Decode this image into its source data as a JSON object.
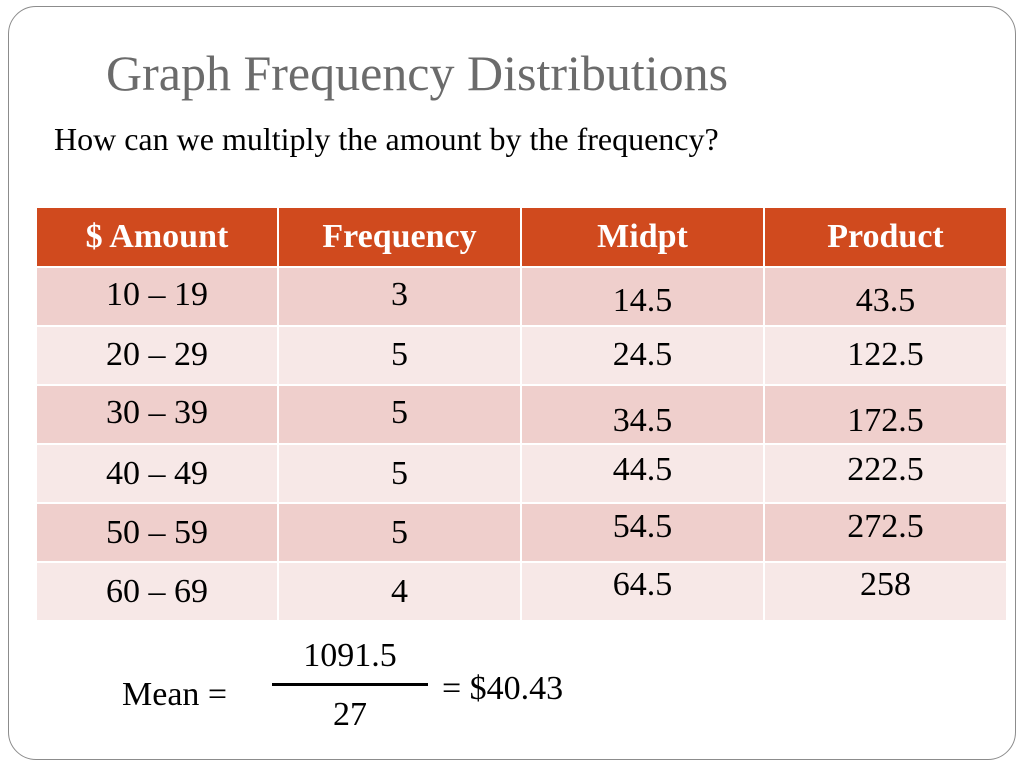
{
  "slide": {
    "title": "Graph Frequency Distributions",
    "subtitle": "How can we multiply the amount by the frequency?"
  },
  "table": {
    "headers": [
      "$ Amount",
      "Frequency",
      "Midpt",
      "Product"
    ],
    "header_color": "#d04a1e",
    "row_colors": [
      "#efcfcc",
      "#f7e8e7"
    ],
    "rows": [
      [
        "10 – 19",
        "3",
        "14.5",
        "43.5"
      ],
      [
        "20 – 29",
        "5",
        "24.5",
        "122.5"
      ],
      [
        "30 – 39",
        "5",
        "34.5",
        "172.5"
      ],
      [
        "40 – 49",
        "5",
        "44.5",
        "222.5"
      ],
      [
        "50 – 59",
        "5",
        "54.5",
        "272.5"
      ],
      [
        "60 – 69",
        "4",
        "64.5",
        "258"
      ]
    ]
  },
  "mean": {
    "label": "Mean =",
    "numerator": "1091.5",
    "denominator": "27",
    "result": "= $40.43"
  }
}
